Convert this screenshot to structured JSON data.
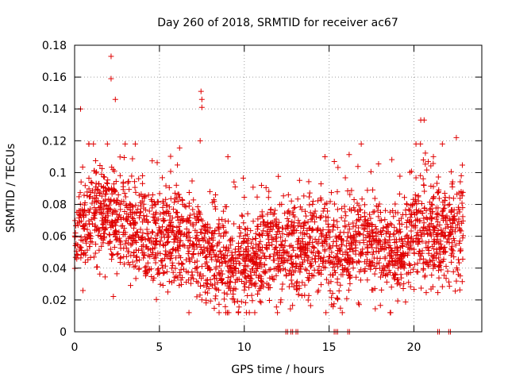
{
  "chart_data": {
    "type": "scatter",
    "title": "Day 260 of 2018, SRMTID for receiver ac67",
    "xlabel": "GPS time / hours",
    "ylabel": "SRMTID / TECUs",
    "xlim": [
      0,
      24
    ],
    "ylim": [
      0,
      0.18
    ],
    "x_ticks": [
      0,
      5,
      10,
      15,
      20
    ],
    "x_tick_labels": [
      "0",
      "5",
      "10",
      "15",
      "20"
    ],
    "y_ticks": [
      0,
      0.02,
      0.04,
      0.06,
      0.08,
      0.1,
      0.12,
      0.14,
      0.16,
      0.18
    ],
    "y_tick_labels": [
      "0",
      "0.02",
      "0.04",
      "0.06",
      "0.08",
      "0.1",
      "0.12",
      "0.14",
      "0.16",
      "0.18"
    ],
    "grid": true,
    "marker": "+",
    "color": "#e00000",
    "point_count": 2600,
    "data_x_range": [
      0,
      22.9
    ],
    "series": [
      {
        "name": "SRMTID",
        "notable_points": [
          {
            "x": 2.15,
            "y": 0.173
          },
          {
            "x": 2.15,
            "y": 0.159
          },
          {
            "x": 2.4,
            "y": 0.146
          },
          {
            "x": 0.35,
            "y": 0.14
          },
          {
            "x": 7.45,
            "y": 0.151
          },
          {
            "x": 7.5,
            "y": 0.146
          },
          {
            "x": 7.5,
            "y": 0.141
          },
          {
            "x": 7.4,
            "y": 0.12
          },
          {
            "x": 20.4,
            "y": 0.133
          },
          {
            "x": 20.6,
            "y": 0.133
          },
          {
            "x": 22.5,
            "y": 0.122
          },
          {
            "x": 9.65,
            "y": 0.012
          },
          {
            "x": 18.6,
            "y": 0.012
          }
        ],
        "trend_mean": [
          {
            "x": 0,
            "y": 0.062
          },
          {
            "x": 1,
            "y": 0.072
          },
          {
            "x": 2,
            "y": 0.075
          },
          {
            "x": 3,
            "y": 0.068
          },
          {
            "x": 4,
            "y": 0.058
          },
          {
            "x": 5,
            "y": 0.06
          },
          {
            "x": 6,
            "y": 0.062
          },
          {
            "x": 7,
            "y": 0.058
          },
          {
            "x": 8,
            "y": 0.05
          },
          {
            "x": 9,
            "y": 0.042
          },
          {
            "x": 10,
            "y": 0.044
          },
          {
            "x": 11,
            "y": 0.05
          },
          {
            "x": 12,
            "y": 0.055
          },
          {
            "x": 13,
            "y": 0.052
          },
          {
            "x": 14,
            "y": 0.055
          },
          {
            "x": 15,
            "y": 0.052
          },
          {
            "x": 16,
            "y": 0.05
          },
          {
            "x": 17,
            "y": 0.057
          },
          {
            "x": 18,
            "y": 0.055
          },
          {
            "x": 19,
            "y": 0.046
          },
          {
            "x": 20,
            "y": 0.063
          },
          {
            "x": 21,
            "y": 0.063
          },
          {
            "x": 22,
            "y": 0.06
          },
          {
            "x": 22.9,
            "y": 0.066
          }
        ],
        "zero_points_x": [
          12.45,
          12.55,
          12.75,
          12.85,
          13.05,
          13.15,
          15.3,
          15.4,
          15.5,
          16.1,
          16.2,
          21.4,
          21.5,
          22.05,
          22.15
        ]
      }
    ]
  }
}
